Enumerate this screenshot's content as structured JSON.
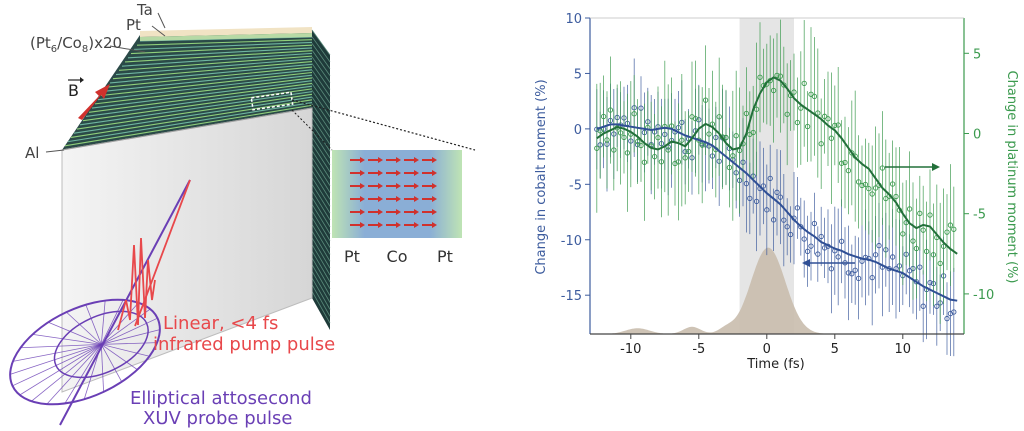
{
  "diagram": {
    "labels": {
      "ta": "Ta",
      "pt_top": "Pt",
      "stack_prefix": "(Pt",
      "stack_sub1": "6",
      "stack_mid": "/Co",
      "stack_sub2": "8",
      "stack_suffix": ")x20",
      "b_field": "B",
      "al": "Al",
      "inset_pt_left": "Pt",
      "inset_co": "Co",
      "inset_pt_right": "Pt",
      "pump_line1": "Linear, <4 fs",
      "pump_line2": "infrared pump pulse",
      "probe_line1": "Elliptical attosecond",
      "probe_line2": "XUV probe pulse"
    },
    "colors": {
      "pump": "#e8484b",
      "probe": "#6a3fb5",
      "b_arrow": "#d0312d",
      "layer_green": "#8fcf7a",
      "layer_dark": "#1f3b3a",
      "inset_blue": "#8aaed6"
    }
  },
  "chart_data": {
    "type": "line",
    "xlabel": "Time (fs)",
    "ylabel_left": "Change in cobalt moment (%)",
    "ylabel_right": "Change in platinum moment (%)",
    "xlim": [
      -13,
      14.5
    ],
    "ylim_left": [
      -18.5,
      10
    ],
    "ylim_right": [
      -12.5,
      7.2
    ],
    "xticks": [
      -10,
      -5,
      0,
      5,
      10
    ],
    "yticks_left": [
      10,
      5,
      0,
      -5,
      -10,
      -15
    ],
    "yticks_right": [
      5,
      0,
      -5,
      -10
    ],
    "highlight_band": [
      -2,
      2
    ],
    "colors": {
      "cobalt": "#3d5c9e",
      "platinum": "#3b9a4e",
      "pulse": "#c9bcad",
      "band": "#e5e5e5"
    },
    "series": [
      {
        "axis": "left",
        "color": "#2f4f95",
        "x": [
          -12.5,
          -12,
          -11.5,
          -11,
          -10.5,
          -10,
          -9.5,
          -9,
          -8.5,
          -8,
          -7.5,
          -7,
          -6.5,
          -6,
          -5.5,
          -5,
          -4.5,
          -4,
          -3.5,
          -3,
          -2.5,
          -2,
          -1.5,
          -1,
          -0.5,
          0,
          0.5,
          1,
          1.5,
          2,
          2.5,
          3,
          3.5,
          4,
          4.5,
          5,
          5.5,
          6,
          6.5,
          7,
          7.5,
          8,
          8.5,
          9,
          9.5,
          10,
          10.5,
          11,
          11.5,
          12,
          12.5,
          13,
          13.5,
          14
        ],
        "y": [
          0,
          0.2,
          0.4,
          0.4,
          0.3,
          0.2,
          0.1,
          0,
          -0.1,
          0,
          0.1,
          0,
          -0.3,
          -0.6,
          -0.8,
          -1,
          -1.2,
          -1.5,
          -2,
          -2.5,
          -3,
          -3.5,
          -4,
          -4.6,
          -5.2,
          -5.8,
          -6.3,
          -6.8,
          -7.5,
          -8.2,
          -8.8,
          -9.3,
          -9.7,
          -10.2,
          -10.5,
          -10.8,
          -11,
          -11.3,
          -11.5,
          -11.7,
          -11.8,
          -12,
          -12.3,
          -12.6,
          -12.8,
          -13,
          -13.4,
          -13.8,
          -14.2,
          -14.5,
          -14.8,
          -15.1,
          -15.4,
          -15.5
        ]
      },
      {
        "axis": "right",
        "color": "#22703a",
        "x": [
          -12.5,
          -12,
          -11.5,
          -11,
          -10.5,
          -10,
          -9.5,
          -9,
          -8.5,
          -8,
          -7.5,
          -7,
          -6.5,
          -6,
          -5.5,
          -5,
          -4.5,
          -4,
          -3.5,
          -3,
          -2.5,
          -2,
          -1.5,
          -1,
          -0.5,
          0,
          0.5,
          1,
          1.5,
          2,
          2.5,
          3,
          3.5,
          4,
          4.5,
          5,
          5.5,
          6,
          6.5,
          7,
          7.5,
          8,
          8.5,
          9,
          9.5,
          10,
          10.5,
          11,
          11.5,
          12,
          12.5,
          13,
          13.5,
          14
        ],
        "y": [
          -0.3,
          0,
          0.2,
          0.4,
          0.3,
          0.1,
          -0.2,
          -0.6,
          -0.9,
          -1,
          -0.8,
          -0.5,
          -0.6,
          -0.8,
          -0.3,
          0.3,
          0.6,
          0.4,
          0,
          -0.6,
          -1,
          -0.9,
          0,
          1.5,
          2.5,
          3.2,
          3.5,
          3.3,
          2.8,
          2.2,
          1.8,
          1.5,
          1.2,
          0.9,
          0.5,
          0.2,
          -0.3,
          -0.9,
          -1.5,
          -1.9,
          -2.2,
          -2.8,
          -3.4,
          -3.8,
          -4.3,
          -5,
          -5.6,
          -5.9,
          -5.7,
          -5.8,
          -6.3,
          -6.8,
          -7.2,
          -7.5
        ]
      }
    ]
  }
}
